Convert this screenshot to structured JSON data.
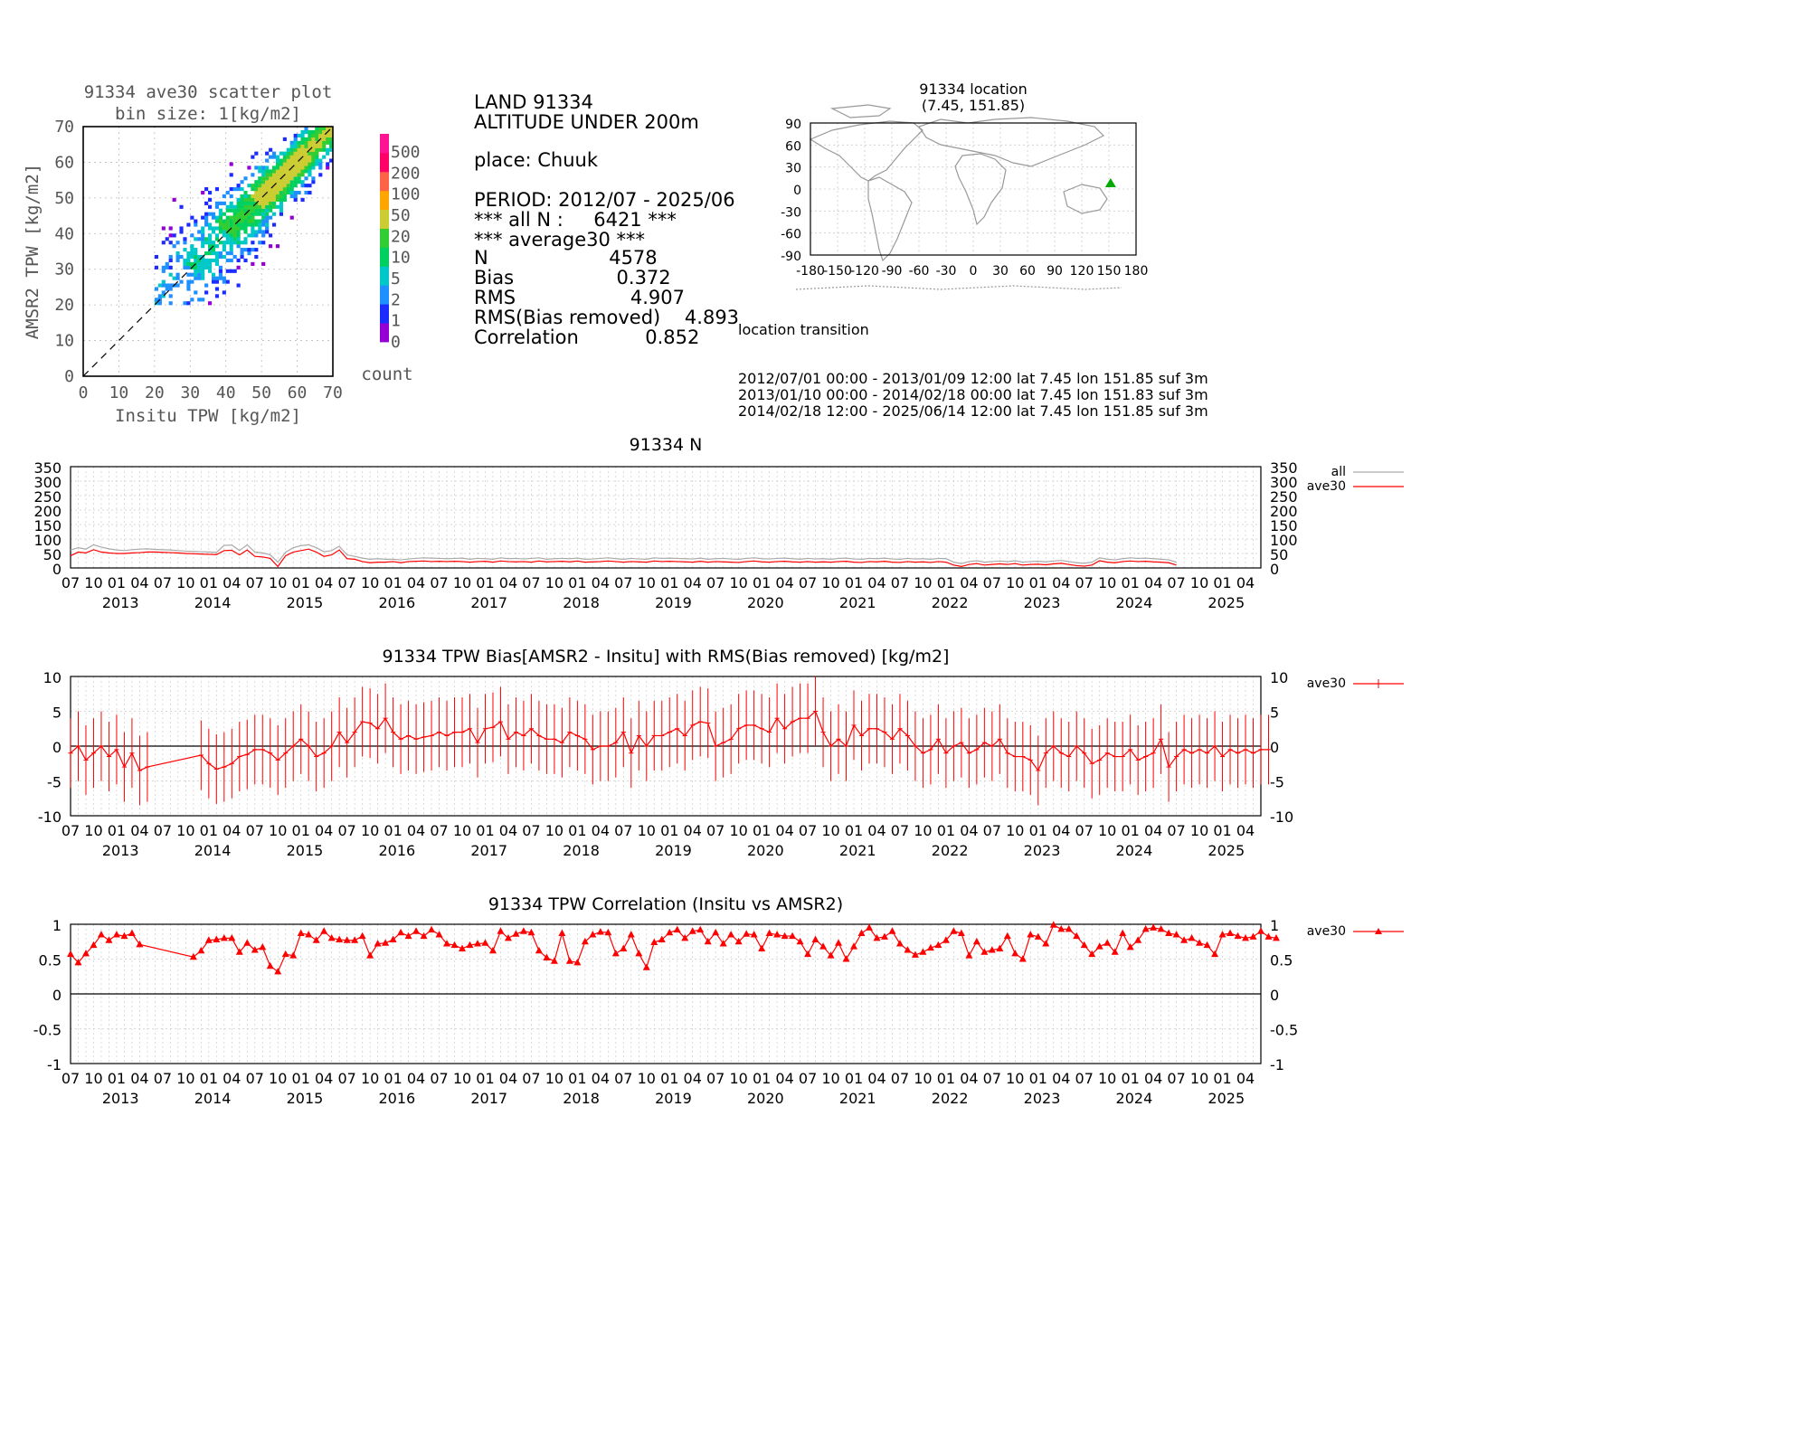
{
  "scatter": {
    "title": "91334 ave30 scatter plot",
    "subtitle": "bin size: 1[kg/m2]",
    "xlabel": "Insitu TPW [kg/m2]",
    "ylabel": "AMSR2 TPW [kg/m2]",
    "ticks": [
      "0",
      "10",
      "20",
      "30",
      "40",
      "50",
      "60",
      "70"
    ],
    "colorbar_label": "count",
    "colorbar_ticks": [
      "0",
      "1",
      "2",
      "5",
      "10",
      "20",
      "50",
      "100",
      "200",
      "500"
    ],
    "colorbar_colors": [
      "#9400d3",
      "#1c2cff",
      "#1e90ff",
      "#00c8c8",
      "#00d060",
      "#32cd32",
      "#cccc33",
      "#ffa500",
      "#ff6347",
      "#ff0066",
      "#ff1493"
    ]
  },
  "info": {
    "lines": [
      "LAND 91334",
      "ALTITUDE UNDER 200m",
      "",
      "place: Chuuk",
      "",
      "PERIOD: 2012/07 - 2025/06",
      "*** all N :     6421 ***",
      "*** average30 ***",
      "N                    4578",
      "Bias                 0.372",
      "RMS                   4.907",
      "RMS(Bias removed)    4.893",
      "Correlation           0.852"
    ]
  },
  "map": {
    "title": "91334 location",
    "subtitle": "(7.45, 151.85)",
    "lat_ticks": [
      "90",
      "60",
      "30",
      "0",
      "-30",
      "-60",
      "-90"
    ],
    "lon_ticks": [
      "-180",
      "-150",
      "-120",
      "-90",
      "-60",
      "-30",
      "0",
      "30",
      "60",
      "90",
      "120",
      "150",
      "180"
    ],
    "marker": {
      "lat": 7.45,
      "lon": 151.85,
      "color": "#00aa00"
    }
  },
  "transition": {
    "title": "location transition",
    "lines": [
      "2012/07/01 00:00 - 2013/01/09 12:00 lat 7.45 lon 151.85 suf 3m",
      "2013/01/10 00:00 - 2014/02/18 00:00 lat 7.45 lon 151.83 suf 3m",
      "2014/02/18 12:00 - 2025/06/14 12:00 lat 7.45 lon 151.85 suf 3m"
    ]
  },
  "timeaxis": {
    "month_labels": [
      "07",
      "10",
      "01",
      "04"
    ],
    "years": [
      "2013",
      "2014",
      "2015",
      "2016",
      "2017",
      "2018",
      "2019",
      "2020",
      "2021",
      "2022",
      "2023",
      "2024",
      "2025"
    ]
  },
  "chart_data": [
    {
      "type": "heatmap",
      "title": "91334 ave30 scatter plot",
      "subtitle": "bin size: 1[kg/m2]",
      "xlabel": "Insitu TPW [kg/m2]",
      "ylabel": "AMSR2 TPW [kg/m2]",
      "xlim": [
        0,
        70
      ],
      "ylim": [
        0,
        70
      ],
      "note": "2D histogram; counts concentrated along the 1:1 line, densest near (55,58)",
      "reference_line": "y=x (dashed)"
    },
    {
      "type": "line",
      "title": "91334 N",
      "ylim": [
        0,
        350
      ],
      "yticks": [
        0,
        50,
        100,
        150,
        200,
        250,
        300,
        350
      ],
      "x_start": "2012-07",
      "series": [
        {
          "name": "all",
          "color": "#aaaaaa",
          "values": [
            62,
            70,
            65,
            80,
            72,
            66,
            62,
            60,
            63,
            65,
            66,
            64,
            63,
            62,
            60,
            58,
            57,
            56,
            55,
            54,
            78,
            79,
            60,
            80,
            55,
            52,
            45,
            20,
            54,
            70,
            77,
            80,
            70,
            56,
            60,
            75,
            45,
            40,
            34,
            30,
            32,
            30,
            30,
            28,
            31,
            33,
            35,
            34,
            33,
            32,
            33,
            34,
            30,
            33,
            32,
            30,
            35,
            32,
            33,
            31,
            33,
            35,
            30,
            32,
            33,
            32,
            34,
            30,
            31,
            33,
            35,
            32,
            30,
            33,
            31,
            30,
            35,
            33,
            34,
            33,
            32,
            31,
            34,
            30,
            32,
            33,
            31,
            30,
            33,
            35,
            32,
            31,
            33,
            34,
            32,
            30,
            33,
            31,
            32,
            30,
            33,
            34,
            31,
            30,
            33,
            32,
            34,
            31,
            30,
            33,
            31,
            32,
            30,
            33,
            32,
            20,
            15,
            22,
            25,
            20,
            22,
            24,
            22,
            25,
            20,
            22,
            23,
            21,
            24,
            26,
            22,
            18,
            16,
            20,
            35,
            30,
            28,
            32,
            35,
            33,
            34,
            32,
            30,
            28,
            20
          ]
        },
        {
          "name": "ave30",
          "color": "#ff0000",
          "values": [
            42,
            55,
            52,
            63,
            55,
            52,
            50,
            50,
            52,
            53,
            55,
            55,
            54,
            53,
            52,
            50,
            49,
            48,
            47,
            46,
            60,
            61,
            45,
            62,
            40,
            38,
            33,
            5,
            42,
            55,
            60,
            65,
            55,
            40,
            45,
            62,
            32,
            30,
            22,
            18,
            20,
            20,
            22,
            18,
            22,
            23,
            24,
            22,
            23,
            22,
            23,
            22,
            20,
            22,
            23,
            20,
            24,
            22,
            21,
            22,
            20,
            24,
            21,
            22,
            23,
            21,
            24,
            20,
            21,
            22,
            24,
            22,
            20,
            22,
            21,
            20,
            24,
            22,
            23,
            22,
            21,
            20,
            23,
            20,
            22,
            21,
            20,
            19,
            22,
            24,
            21,
            20,
            22,
            23,
            21,
            20,
            22,
            20,
            21,
            20,
            22,
            23,
            20,
            19,
            22,
            21,
            23,
            20,
            19,
            22,
            20,
            21,
            19,
            22,
            20,
            10,
            5,
            12,
            15,
            10,
            12,
            14,
            12,
            15,
            10,
            12,
            13,
            11,
            14,
            16,
            12,
            8,
            6,
            10,
            25,
            20,
            18,
            22,
            24,
            22,
            23,
            21,
            20,
            18,
            10
          ]
        }
      ]
    },
    {
      "type": "line",
      "title": "91334 TPW Bias[AMSR2 - Insitu] with RMS(Bias removed) [kg/m2]",
      "ylim": [
        -10,
        10
      ],
      "yticks": [
        -10,
        -5,
        0,
        5,
        10
      ],
      "x_start": "2012-07",
      "note": "errorbars show +/- RMS(Bias removed); gap 2013-05 to 2013-09",
      "series": [
        {
          "name": "ave30",
          "color": "#ff0000",
          "values": [
            -1,
            0,
            -2,
            -1,
            0,
            -1.5,
            -0.5,
            -3,
            -1,
            -3.5,
            -3,
            null,
            null,
            null,
            null,
            null,
            null,
            -1.3,
            -2.5,
            -3.3,
            -3,
            -2.5,
            -1.5,
            -1.2,
            -0.5,
            -0.5,
            -1,
            -2,
            -1,
            0,
            1,
            0,
            -1.5,
            -1,
            0,
            2,
            0.5,
            2,
            3.5,
            3.3,
            2.5,
            4,
            2,
            1,
            1.5,
            1,
            1.3,
            1.5,
            2,
            1.5,
            2,
            2,
            2.5,
            0.5,
            2.5,
            2.7,
            3.5,
            1,
            2,
            1.5,
            2.5,
            1.5,
            1,
            1,
            0.5,
            2,
            1.5,
            1,
            -0.5,
            0,
            0,
            0.5,
            2,
            -1,
            1.5,
            0,
            1.5,
            1.5,
            2,
            2.5,
            1.5,
            3,
            3.5,
            3.3,
            0,
            0.5,
            1,
            2.5,
            3,
            3,
            2.5,
            2,
            4,
            2.5,
            3.5,
            4,
            4,
            5,
            2,
            0,
            1,
            0,
            3,
            1.5,
            2.5,
            2.5,
            2,
            1,
            2.5,
            1.5,
            0,
            -1,
            -0.5,
            1,
            -1,
            0,
            0.5,
            -1,
            -0.5,
            0.5,
            0,
            1,
            -1,
            -1.5,
            -1.5,
            -2,
            -3.5,
            -1,
            0,
            -1,
            -1.5,
            0,
            -1,
            -2.5,
            -2,
            -1,
            -1.5,
            -1.5,
            -0.5,
            -2,
            -1.5,
            -1,
            1,
            -3,
            -1.5,
            -0.5,
            -1,
            -0.5,
            -1,
            0,
            -1.5,
            -0.5,
            -1,
            -0.5,
            -1,
            -0.5,
            -0.5
          ]
        }
      ]
    },
    {
      "type": "line",
      "title": "91334 TPW Correlation (Insitu vs AMSR2)",
      "ylim": [
        -1,
        1
      ],
      "yticks": [
        -1,
        -0.5,
        0,
        0.5,
        1
      ],
      "x_start": "2012-07",
      "series": [
        {
          "name": "ave30",
          "color": "#ff0000",
          "values": [
            0.57,
            0.45,
            0.58,
            0.7,
            0.85,
            0.77,
            0.85,
            0.83,
            0.87,
            0.71,
            null,
            null,
            null,
            null,
            null,
            null,
            0.53,
            0.62,
            0.77,
            0.78,
            0.8,
            0.8,
            0.6,
            0.73,
            0.63,
            0.67,
            0.4,
            0.32,
            0.57,
            0.55,
            0.87,
            0.85,
            0.77,
            0.9,
            0.8,
            0.78,
            0.77,
            0.77,
            0.83,
            0.55,
            0.72,
            0.73,
            0.78,
            0.88,
            0.83,
            0.9,
            0.83,
            0.92,
            0.85,
            0.72,
            0.7,
            0.65,
            0.7,
            0.72,
            0.73,
            0.62,
            0.9,
            0.8,
            0.86,
            0.9,
            0.88,
            0.62,
            0.52,
            0.47,
            0.87,
            0.47,
            0.45,
            0.75,
            0.85,
            0.89,
            0.88,
            0.58,
            0.65,
            0.85,
            0.58,
            0.38,
            0.74,
            0.78,
            0.88,
            0.92,
            0.8,
            0.9,
            0.92,
            0.75,
            0.88,
            0.72,
            0.85,
            0.75,
            0.86,
            0.85,
            0.65,
            0.87,
            0.85,
            0.83,
            0.83,
            0.75,
            0.57,
            0.78,
            0.68,
            0.55,
            0.73,
            0.5,
            0.68,
            0.87,
            0.95,
            0.8,
            0.82,
            0.9,
            0.72,
            0.63,
            0.56,
            0.6,
            0.66,
            0.7,
            0.77,
            0.9,
            0.87,
            0.55,
            0.75,
            0.6,
            0.63,
            0.65,
            0.83,
            0.58,
            0.5,
            0.85,
            0.82,
            0.72,
            0.99,
            0.93,
            0.93,
            0.83,
            0.7,
            0.57,
            0.68,
            0.73,
            0.6,
            0.87,
            0.67,
            0.77,
            0.93,
            0.95,
            0.93,
            0.87,
            0.85,
            0.77,
            0.8,
            0.73,
            0.7,
            0.57,
            0.85,
            0.87,
            0.83,
            0.8,
            0.82,
            0.9,
            0.82,
            0.8
          ]
        }
      ]
    }
  ]
}
